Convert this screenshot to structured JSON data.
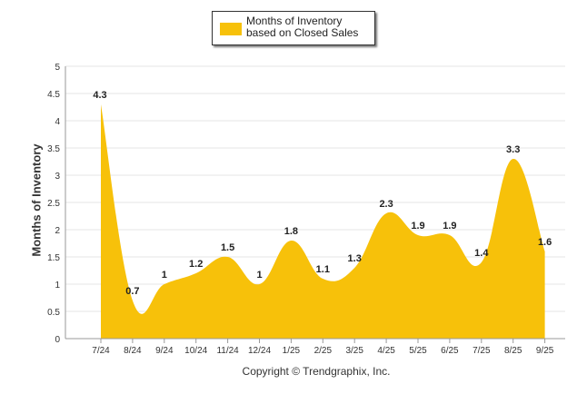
{
  "chart_data": {
    "type": "area",
    "categories": [
      "7/24",
      "8/24",
      "9/24",
      "10/24",
      "11/24",
      "12/24",
      "1/25",
      "2/25",
      "3/25",
      "4/25",
      "5/25",
      "6/25",
      "7/25",
      "8/25",
      "9/25"
    ],
    "series": [
      {
        "name": "Months of Inventory based on Closed Sales",
        "values": [
          4.3,
          0.7,
          1,
          1.2,
          1.5,
          1,
          1.8,
          1.1,
          1.3,
          2.3,
          1.9,
          1.9,
          1.4,
          3.3,
          1.6
        ],
        "color": "#f7c10a"
      }
    ],
    "ylabel": "Months of Inventory",
    "xlabel": "",
    "ylim": [
      0,
      5
    ],
    "yticks": [
      "0",
      "0.5",
      "1",
      "1.5",
      "2",
      "2.5",
      "3",
      "3.5",
      "4",
      "4.5",
      "5"
    ],
    "legend_position": "top-center",
    "grid": true
  },
  "legend": {
    "label": "Months of Inventory based on Closed Sales"
  },
  "axis": {
    "ylabel": "Months of Inventory"
  },
  "footer": {
    "copyright": "Copyright © Trendgraphix, Inc."
  }
}
